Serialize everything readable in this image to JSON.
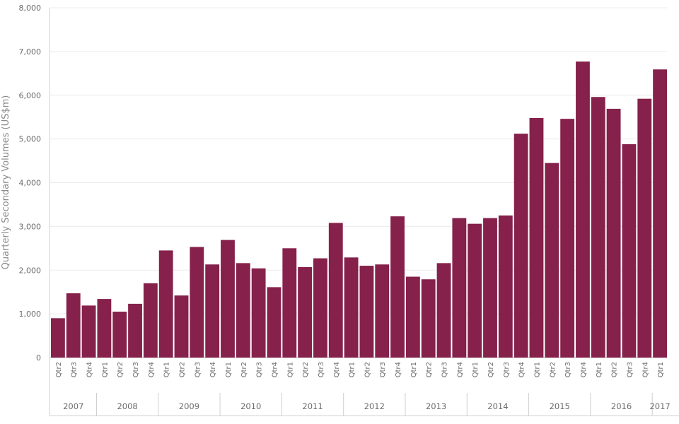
{
  "chart_data": {
    "type": "bar",
    "title": "",
    "xlabel": "",
    "ylabel": "Quarterly Secondary Volumes (US$m)",
    "ylim": [
      0,
      8000
    ],
    "yticks": [
      0,
      1000,
      2000,
      3000,
      4000,
      5000,
      6000,
      7000,
      8000
    ],
    "ytick_labels": [
      "0",
      "1,000",
      "2,000",
      "3,000",
      "4,000",
      "5,000",
      "6,000",
      "7,000",
      "8,000"
    ],
    "grid": true,
    "bar_color": "#85214B",
    "categories": [
      {
        "year": "2007",
        "quarter": "Qtr2"
      },
      {
        "year": "2007",
        "quarter": "Qtr3"
      },
      {
        "year": "2007",
        "quarter": "Qtr4"
      },
      {
        "year": "2008",
        "quarter": "Qtr1"
      },
      {
        "year": "2008",
        "quarter": "Qtr2"
      },
      {
        "year": "2008",
        "quarter": "Qtr3"
      },
      {
        "year": "2008",
        "quarter": "Qtr4"
      },
      {
        "year": "2009",
        "quarter": "Qtr1"
      },
      {
        "year": "2009",
        "quarter": "Qtr2"
      },
      {
        "year": "2009",
        "quarter": "Qtr3"
      },
      {
        "year": "2009",
        "quarter": "Qtr4"
      },
      {
        "year": "2010",
        "quarter": "Qtr1"
      },
      {
        "year": "2010",
        "quarter": "Qtr2"
      },
      {
        "year": "2010",
        "quarter": "Qtr3"
      },
      {
        "year": "2010",
        "quarter": "Qtr4"
      },
      {
        "year": "2011",
        "quarter": "Qtr1"
      },
      {
        "year": "2011",
        "quarter": "Qtr2"
      },
      {
        "year": "2011",
        "quarter": "Qtr3"
      },
      {
        "year": "2011",
        "quarter": "Qtr4"
      },
      {
        "year": "2012",
        "quarter": "Qtr1"
      },
      {
        "year": "2012",
        "quarter": "Qtr2"
      },
      {
        "year": "2012",
        "quarter": "Qtr3"
      },
      {
        "year": "2012",
        "quarter": "Qtr4"
      },
      {
        "year": "2013",
        "quarter": "Qtr1"
      },
      {
        "year": "2013",
        "quarter": "Qtr2"
      },
      {
        "year": "2013",
        "quarter": "Qtr3"
      },
      {
        "year": "2013",
        "quarter": "Qtr4"
      },
      {
        "year": "2014",
        "quarter": "Qtr1"
      },
      {
        "year": "2014",
        "quarter": "Qtr2"
      },
      {
        "year": "2014",
        "quarter": "Qtr3"
      },
      {
        "year": "2014",
        "quarter": "Qtr4"
      },
      {
        "year": "2015",
        "quarter": "Qtr1"
      },
      {
        "year": "2015",
        "quarter": "Qtr2"
      },
      {
        "year": "2015",
        "quarter": "Qtr3"
      },
      {
        "year": "2015",
        "quarter": "Qtr4"
      },
      {
        "year": "2016",
        "quarter": "Qtr1"
      },
      {
        "year": "2016",
        "quarter": "Qtr2"
      },
      {
        "year": "2016",
        "quarter": "Qtr3"
      },
      {
        "year": "2016",
        "quarter": "Qtr4"
      },
      {
        "year": "2017",
        "quarter": "Qtr1"
      }
    ],
    "series": [
      {
        "values": [
          900,
          1470,
          1190,
          1340,
          1050,
          1230,
          1700,
          2450,
          1420,
          2530,
          2130,
          2690,
          2160,
          2040,
          1610,
          2500,
          2070,
          2270,
          3080,
          2290,
          2100,
          2130,
          3230,
          1850,
          1790,
          2160,
          3190,
          3060,
          3190,
          3250,
          5120,
          5480,
          4450,
          5460,
          6770,
          5960,
          5690,
          4880,
          5920,
          6590
        ]
      }
    ],
    "years": [
      "2007",
      "2008",
      "2009",
      "2010",
      "2011",
      "2012",
      "2013",
      "2014",
      "2015",
      "2016",
      "2017"
    ]
  }
}
